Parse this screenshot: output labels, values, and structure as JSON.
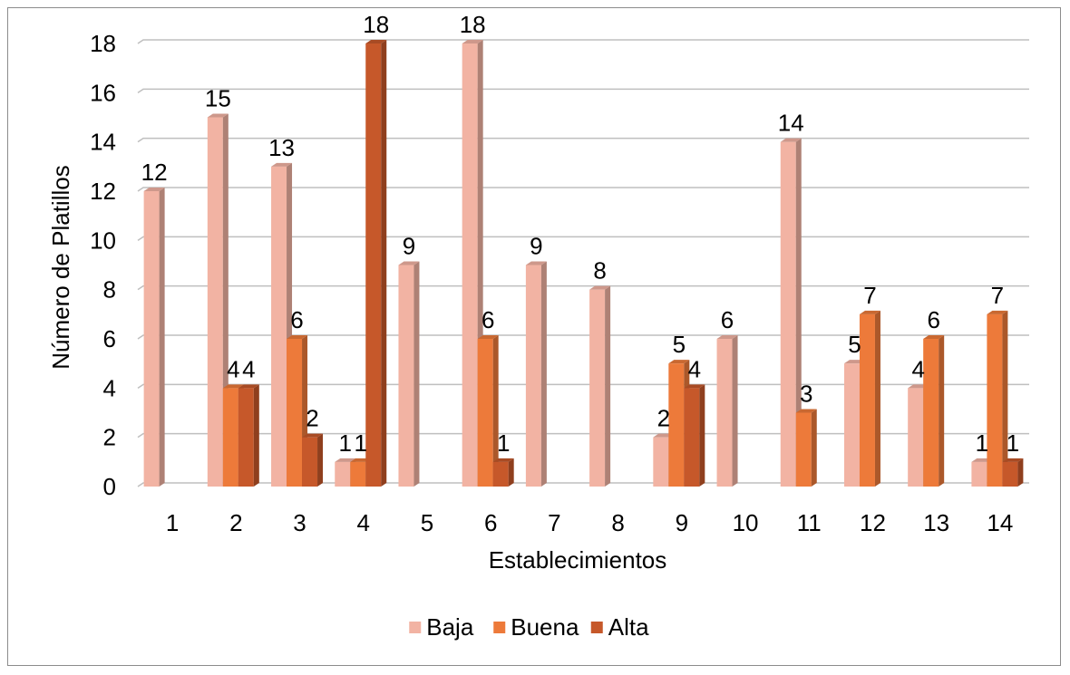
{
  "chart_data": {
    "type": "bar",
    "title": "",
    "xlabel": "Establecimientos",
    "ylabel": "Número de Platillos",
    "categories": [
      "1",
      "2",
      "3",
      "4",
      "5",
      "6",
      "7",
      "8",
      "9",
      "10",
      "11",
      "12",
      "13",
      "14"
    ],
    "series": [
      {
        "name": "Baja",
        "color": "#f2b3a3",
        "values": [
          12,
          15,
          13,
          1,
          9,
          18,
          9,
          8,
          2,
          6,
          14,
          5,
          4,
          1
        ]
      },
      {
        "name": "Buena",
        "color": "#ed7a3a",
        "values": [
          0,
          4,
          6,
          1,
          0,
          6,
          0,
          0,
          5,
          0,
          3,
          7,
          6,
          7
        ]
      },
      {
        "name": "Alta",
        "color": "#c6582a",
        "values": [
          0,
          4,
          2,
          18,
          0,
          1,
          0,
          0,
          4,
          0,
          0,
          0,
          0,
          1
        ]
      }
    ],
    "ylim": [
      0,
      18
    ],
    "yticks": [
      0,
      2,
      4,
      6,
      8,
      10,
      12,
      14,
      16,
      18
    ],
    "grid": true,
    "legend_position": "bottom",
    "style": "3d-bars"
  }
}
